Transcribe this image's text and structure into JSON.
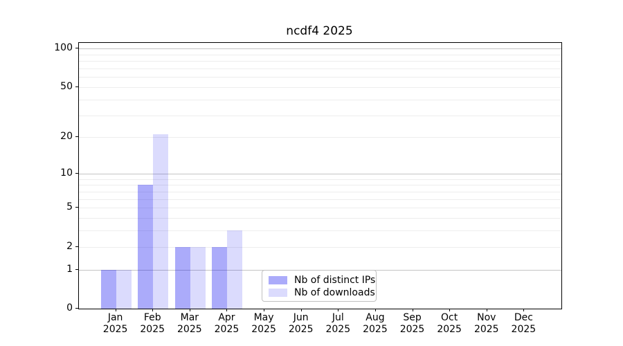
{
  "page": {
    "background": "#ffffff"
  },
  "chart_data": {
    "type": "bar",
    "title": "ncdf4 2025",
    "categories": [
      "Jan 2025",
      "Feb 2025",
      "Mar 2025",
      "Apr 2025",
      "May 2025",
      "Jun 2025",
      "Jul 2025",
      "Aug 2025",
      "Sep 2025",
      "Oct 2025",
      "Nov 2025",
      "Dec 2025"
    ],
    "x_tick_line1": [
      "Jan",
      "Feb",
      "Mar",
      "Apr",
      "May",
      "Jun",
      "Jul",
      "Aug",
      "Sep",
      "Oct",
      "Nov",
      "Dec"
    ],
    "x_tick_line2": "2025",
    "series": [
      {
        "name": "Nb of distinct IPs",
        "color": "rgba(0,0,240,0.33)",
        "values": [
          1,
          8,
          2,
          2,
          0,
          0,
          0,
          0,
          0,
          0,
          0,
          0
        ]
      },
      {
        "name": "Nb of downloads",
        "color": "rgba(0,0,240,0.14)",
        "values": [
          1,
          21,
          2,
          3,
          0,
          0,
          0,
          0,
          0,
          0,
          0,
          0
        ]
      }
    ],
    "y_axis": {
      "scale": "log1p",
      "ylim": [
        0,
        111
      ],
      "tick_values": [
        0,
        1,
        2,
        5,
        10,
        20,
        50,
        100
      ],
      "tick_labels": [
        "0",
        "1",
        "2",
        "5",
        "10",
        "20",
        "50",
        "100"
      ],
      "major_gridlines": [
        1,
        10,
        100
      ],
      "minor_gridlines": [
        2,
        3,
        4,
        5,
        6,
        7,
        8,
        9,
        20,
        30,
        40,
        50,
        60,
        70,
        80,
        90
      ]
    },
    "legend": {
      "location": "lower center",
      "entries": [
        "Nb of distinct IPs",
        "Nb of downloads"
      ]
    },
    "grid": {
      "major_color": "#c4c4c4",
      "minor_color": "#ededed"
    }
  }
}
